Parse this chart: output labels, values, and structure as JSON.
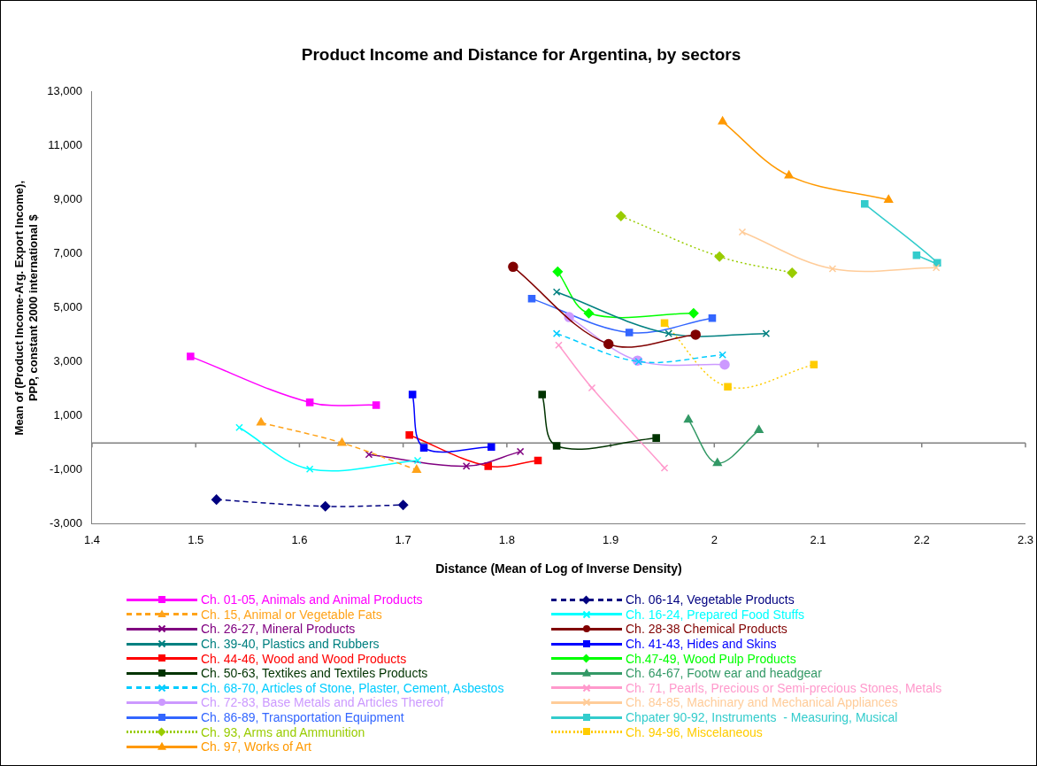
{
  "chart_data": {
    "type": "line",
    "title": "Product Income and Distance for Argentina, by sectors",
    "xlabel": "Distance (Mean of Log of Inverse Density)",
    "ylabel": "Mean of (Product Income-Arg. Export Income), PPP, constant 2000 international $",
    "xlim": [
      1.4,
      2.3
    ],
    "xticks": [
      1.4,
      1.5,
      1.6,
      1.7,
      1.8,
      1.9,
      2.0,
      2.1,
      2.2,
      2.3
    ],
    "ylim": [
      -3000,
      13000
    ],
    "yticks": [
      {
        "value": -3000,
        "label": "-3,000"
      },
      {
        "value": -1000,
        "label": "-1,000"
      },
      {
        "value": 1000,
        "label": "1,000"
      },
      {
        "value": 3000,
        "label": "3,000"
      },
      {
        "value": 5000,
        "label": "5,000"
      },
      {
        "value": 7000,
        "label": "7,000"
      },
      {
        "value": 9000,
        "label": "9,000"
      },
      {
        "value": 11000,
        "label": "11,000"
      },
      {
        "value": 13000,
        "label": "13,000"
      }
    ],
    "grid": false,
    "legend": "bottom",
    "ref_lines": [
      {
        "axis": "y",
        "value": 0,
        "color": "#808080"
      }
    ],
    "series": [
      {
        "name": "Ch. 01-05, Animals and Animal Products",
        "color": "#ff00ff",
        "marker": "square",
        "line_style": "solid",
        "x": [
          1.495,
          1.61,
          1.674
        ],
        "values": [
          3200,
          1500,
          1400
        ]
      },
      {
        "name": "Ch. 06-14, Vegetable Products",
        "color": "#000080",
        "marker": "diamond",
        "line_style": "dashed",
        "x": [
          1.52,
          1.625,
          1.7
        ],
        "values": [
          -2100,
          -2350,
          -2300
        ]
      },
      {
        "name": "Ch. 15, Animal or Vegetable Fats",
        "color": "#ffa31a",
        "marker": "triangle",
        "line_style": "dashed",
        "x": [
          1.563,
          1.641,
          1.713
        ],
        "values": [
          750,
          0,
          -1000
        ]
      },
      {
        "name": "Ch. 16-24, Prepared Food Stuffs",
        "color": "#00ffff",
        "marker": "cross",
        "line_style": "solid",
        "x": [
          1.542,
          1.61,
          1.714
        ],
        "values": [
          570,
          -970,
          -650
        ]
      },
      {
        "name": "Ch. 26-27, Mineral Products",
        "color": "#800080",
        "marker": "cross",
        "line_style": "solid",
        "x": [
          1.667,
          1.761,
          1.813
        ],
        "values": [
          -430,
          -860,
          -320
        ]
      },
      {
        "name": "Ch. 28-38 Chemical Products",
        "color": "#800000",
        "marker": "circle",
        "line_style": "solid",
        "x": [
          1.806,
          1.898,
          1.982
        ],
        "values": [
          6520,
          3660,
          4010
        ]
      },
      {
        "name": "Ch. 39-40, Plastics and Rubbers",
        "color": "#008080",
        "marker": "cross",
        "line_style": "solid",
        "x": [
          1.848,
          1.956,
          2.05
        ],
        "values": [
          5590,
          4050,
          4050
        ]
      },
      {
        "name": "Ch. 41-43, Hides and Skins",
        "color": "#0000ff",
        "marker": "square",
        "line_style": "solid",
        "x": [
          1.709,
          1.72,
          1.785
        ],
        "values": [
          1790,
          -180,
          -150
        ]
      },
      {
        "name": "Ch. 44-46, Wood and Wood Products",
        "color": "#ff0000",
        "marker": "square",
        "line_style": "solid",
        "x": [
          1.706,
          1.782,
          1.83
        ],
        "values": [
          290,
          -860,
          -650
        ]
      },
      {
        "name": "Ch.47-49, Wood Pulp Products",
        "color": "#00ff00",
        "marker": "diamond",
        "line_style": "solid",
        "x": [
          1.849,
          1.879,
          1.98
        ],
        "values": [
          6340,
          4800,
          4800
        ]
      },
      {
        "name": "Ch. 50-63, Textikes and Textiles Products",
        "color": "#003300",
        "marker": "square",
        "line_style": "solid",
        "x": [
          1.834,
          1.848,
          1.944
        ],
        "values": [
          1790,
          -110,
          180
        ]
      },
      {
        "name": "Ch. 64-67, Footw ear and headgear",
        "color": "#339966",
        "marker": "triangle",
        "line_style": "solid",
        "x": [
          1.975,
          2.003,
          2.043
        ],
        "values": [
          860,
          -750,
          470
        ]
      },
      {
        "name": "Ch. 68-70, Articles of Stone, Plaster, Cement, Asbestos",
        "color": "#00ccff",
        "marker": "cross",
        "line_style": "dashed",
        "x": [
          1.848,
          1.927,
          2.008
        ],
        "values": [
          4050,
          3010,
          3260
        ]
      },
      {
        "name": "Ch. 71, Pearls, Precious or Semi-precious Stones, Metals",
        "color": "#ff99cc",
        "marker": "cross",
        "line_style": "solid",
        "x": [
          1.85,
          1.882,
          1.952
        ],
        "values": [
          3620,
          2040,
          -930
        ]
      },
      {
        "name": "Ch. 72-83, Base Metals and Articles Thereof",
        "color": "#cc99ff",
        "marker": "circle",
        "line_style": "solid",
        "x": [
          1.86,
          1.926,
          2.01
        ],
        "values": [
          4660,
          3050,
          2900
        ]
      },
      {
        "name": "Ch. 84-85, Machinary and Mechanical Appliances",
        "color": "#ffcc99",
        "marker": "cross",
        "line_style": "solid",
        "x": [
          2.027,
          2.114,
          2.214
        ],
        "values": [
          7810,
          6450,
          6490
        ]
      },
      {
        "name": "Ch. 86-89, Transportation Equipment",
        "color": "#3366ff",
        "marker": "square",
        "line_style": "solid",
        "x": [
          1.824,
          1.918,
          1.998
        ],
        "values": [
          5340,
          4090,
          4620
        ]
      },
      {
        "name": "Chpater 90-92, Instruments  - Measuring, Musical",
        "color": "#33cccc",
        "marker": "square",
        "line_style": "solid",
        "x": [
          2.145,
          2.215,
          2.195
        ],
        "values": [
          8850,
          6670,
          6950
        ]
      },
      {
        "name": "Ch. 93, Arms and Ammunition",
        "color": "#99cc00",
        "marker": "diamond",
        "line_style": "dotted",
        "x": [
          1.91,
          2.005,
          2.075
        ],
        "values": [
          8400,
          6900,
          6300
        ]
      },
      {
        "name": "Ch. 94-96, Miscelaneous",
        "color": "#ffcc00",
        "marker": "square",
        "line_style": "dotted",
        "x": [
          1.952,
          2.013,
          2.096
        ],
        "values": [
          4440,
          2080,
          2900
        ]
      },
      {
        "name": "Ch. 97, Works of Art",
        "color": "#ff9900",
        "marker": "triangle",
        "line_style": "solid",
        "x": [
          2.008,
          2.072,
          2.168
        ],
        "values": [
          11900,
          9900,
          9000
        ]
      }
    ]
  }
}
